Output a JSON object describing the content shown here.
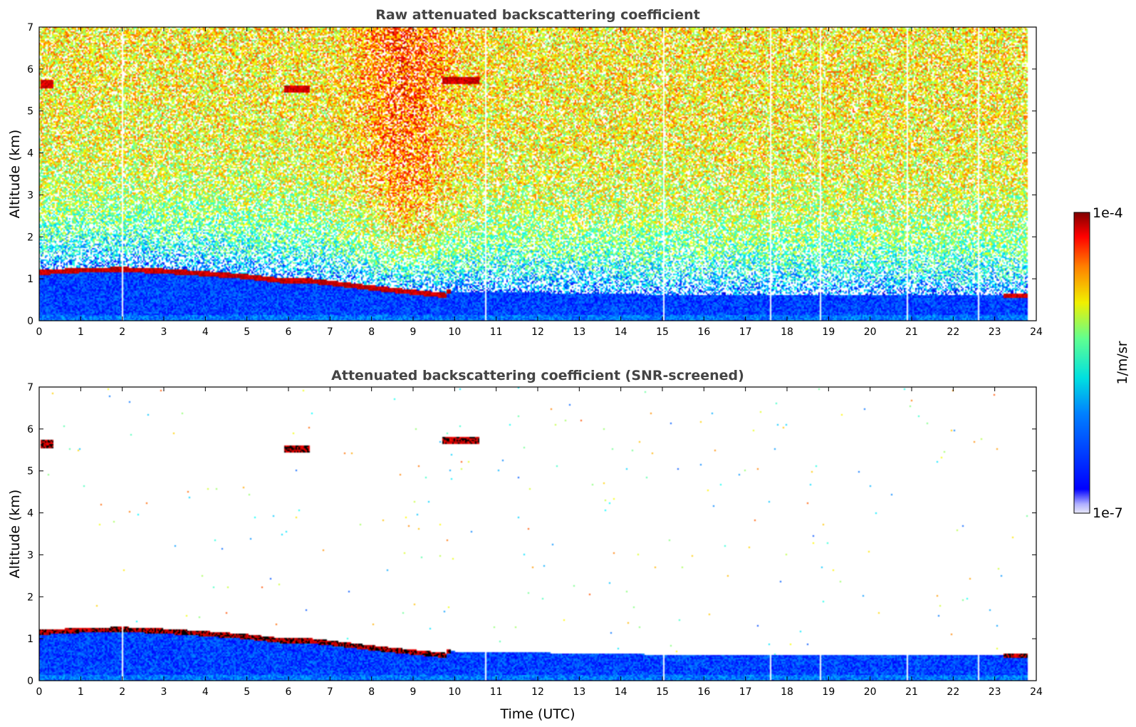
{
  "chart_data": [
    {
      "type": "heatmap",
      "title": "Raw attenuated backscattering coefficient",
      "xlabel": "",
      "ylabel": "Altitude (km)",
      "xlim": [
        0,
        24
      ],
      "ylim": [
        0,
        7
      ],
      "xticks": [
        "0",
        "1",
        "2",
        "3",
        "4",
        "5",
        "6",
        "7",
        "8",
        "9",
        "10",
        "11",
        "12",
        "13",
        "14",
        "15",
        "16",
        "17",
        "18",
        "19",
        "20",
        "21",
        "22",
        "23",
        "24"
      ],
      "yticks": [
        "0",
        "1",
        "2",
        "3",
        "4",
        "5",
        "6",
        "7"
      ],
      "mode": "raw",
      "data_gaps_utc": [
        2.0,
        10.75,
        15.05,
        17.6,
        18.8,
        20.9,
        22.6
      ],
      "boundary_layer_top_km": [
        [
          0,
          1.15
        ],
        [
          1,
          1.2
        ],
        [
          2,
          1.22
        ],
        [
          3,
          1.18
        ],
        [
          4,
          1.12
        ],
        [
          5,
          1.05
        ],
        [
          5.9,
          0.95
        ],
        [
          6.5,
          0.95
        ],
        [
          7,
          0.9
        ],
        [
          8,
          0.78
        ],
        [
          9,
          0.68
        ],
        [
          9.8,
          0.6
        ]
      ],
      "cloud_layers": [
        {
          "x0": 0.05,
          "x1": 0.35,
          "y0": 5.55,
          "y1": 5.75
        },
        {
          "x0": 5.9,
          "x1": 6.5,
          "y0": 5.42,
          "y1": 5.62
        },
        {
          "x0": 9.7,
          "x1": 10.6,
          "y0": 5.65,
          "y1": 5.82
        },
        {
          "x0": 23.2,
          "x1": 23.8,
          "y0": 0.55,
          "y1": 0.65
        }
      ]
    },
    {
      "type": "heatmap",
      "title": "Attenuated backscattering coefficient (SNR-screened)",
      "xlabel": "Time (UTC)",
      "ylabel": "Altitude (km)",
      "xlim": [
        0,
        24
      ],
      "ylim": [
        0,
        7
      ],
      "xticks": [
        "0",
        "1",
        "2",
        "3",
        "4",
        "5",
        "6",
        "7",
        "8",
        "9",
        "10",
        "11",
        "12",
        "13",
        "14",
        "15",
        "16",
        "17",
        "18",
        "19",
        "20",
        "21",
        "22",
        "23",
        "24"
      ],
      "yticks": [
        "0",
        "1",
        "2",
        "3",
        "4",
        "5",
        "6",
        "7"
      ],
      "mode": "screened",
      "data_gaps_utc": [
        2.0,
        10.75,
        15.05,
        17.6,
        18.8,
        20.9,
        22.6
      ],
      "boundary_layer_top_km": [
        [
          0,
          1.15
        ],
        [
          1,
          1.2
        ],
        [
          2,
          1.22
        ],
        [
          3,
          1.18
        ],
        [
          4,
          1.12
        ],
        [
          5,
          1.05
        ],
        [
          5.9,
          0.95
        ],
        [
          6.5,
          0.95
        ],
        [
          7,
          0.9
        ],
        [
          8,
          0.78
        ],
        [
          9,
          0.68
        ],
        [
          9.8,
          0.6
        ]
      ],
      "cloud_layers": [
        {
          "x0": 0.05,
          "x1": 0.35,
          "y0": 5.55,
          "y1": 5.75
        },
        {
          "x0": 5.9,
          "x1": 6.5,
          "y0": 5.42,
          "y1": 5.62
        },
        {
          "x0": 9.7,
          "x1": 10.6,
          "y0": 5.65,
          "y1": 5.82
        },
        {
          "x0": 23.2,
          "x1": 23.8,
          "y0": 0.55,
          "y1": 0.65
        }
      ]
    }
  ],
  "colorbar": {
    "max_label": "1e-4",
    "min_label": "1e-7",
    "unit_label": "1/m/sr",
    "colormap": "jet"
  }
}
